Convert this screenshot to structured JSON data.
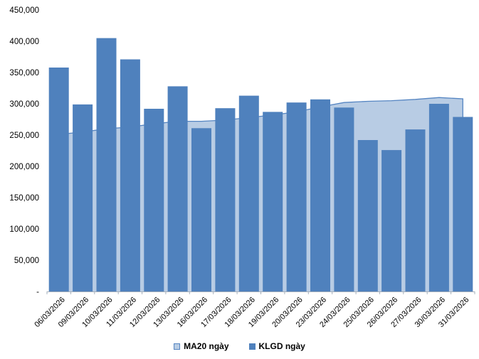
{
  "chart_data": {
    "type": "bar",
    "title": "",
    "categories": [
      "06/03/2026",
      "09/03/2026",
      "10/03/2026",
      "11/03/2026",
      "12/03/2026",
      "13/03/2026",
      "16/03/2026",
      "17/03/2026",
      "18/03/2026",
      "19/03/2026",
      "20/03/2026",
      "23/03/2026",
      "24/03/2026",
      "25/03/2026",
      "26/03/2026",
      "27/03/2026",
      "30/03/2026",
      "31/03/2026"
    ],
    "series": [
      {
        "name": "MA20 ngày",
        "type": "area",
        "color": "#B8CCE4",
        "line_color": "#5585C2",
        "values": [
          251000,
          255000,
          260000,
          263000,
          268000,
          272000,
          272000,
          274000,
          278000,
          282000,
          287000,
          295000,
          302000,
          304000,
          305000,
          307000,
          310000,
          308000
        ]
      },
      {
        "name": "KLGD ngày",
        "type": "bar",
        "color": "#4F81BD",
        "values": [
          358000,
          299000,
          405000,
          371000,
          292000,
          328000,
          261000,
          293000,
          313000,
          287000,
          302000,
          307000,
          294000,
          242000,
          226000,
          259000,
          300000,
          279000
        ]
      }
    ],
    "ylim": [
      0,
      450000
    ],
    "ytick_step": 50000,
    "ytick_labels": [
      "-",
      "50,000",
      "100,000",
      "150,000",
      "200,000",
      "250,000",
      "300,000",
      "350,000",
      "400,000",
      "450,000"
    ],
    "xlabel": "",
    "ylabel": "",
    "grid": false,
    "legend_position": "bottom",
    "axis_color": "#A6B0BC",
    "text_color": "#000000"
  }
}
